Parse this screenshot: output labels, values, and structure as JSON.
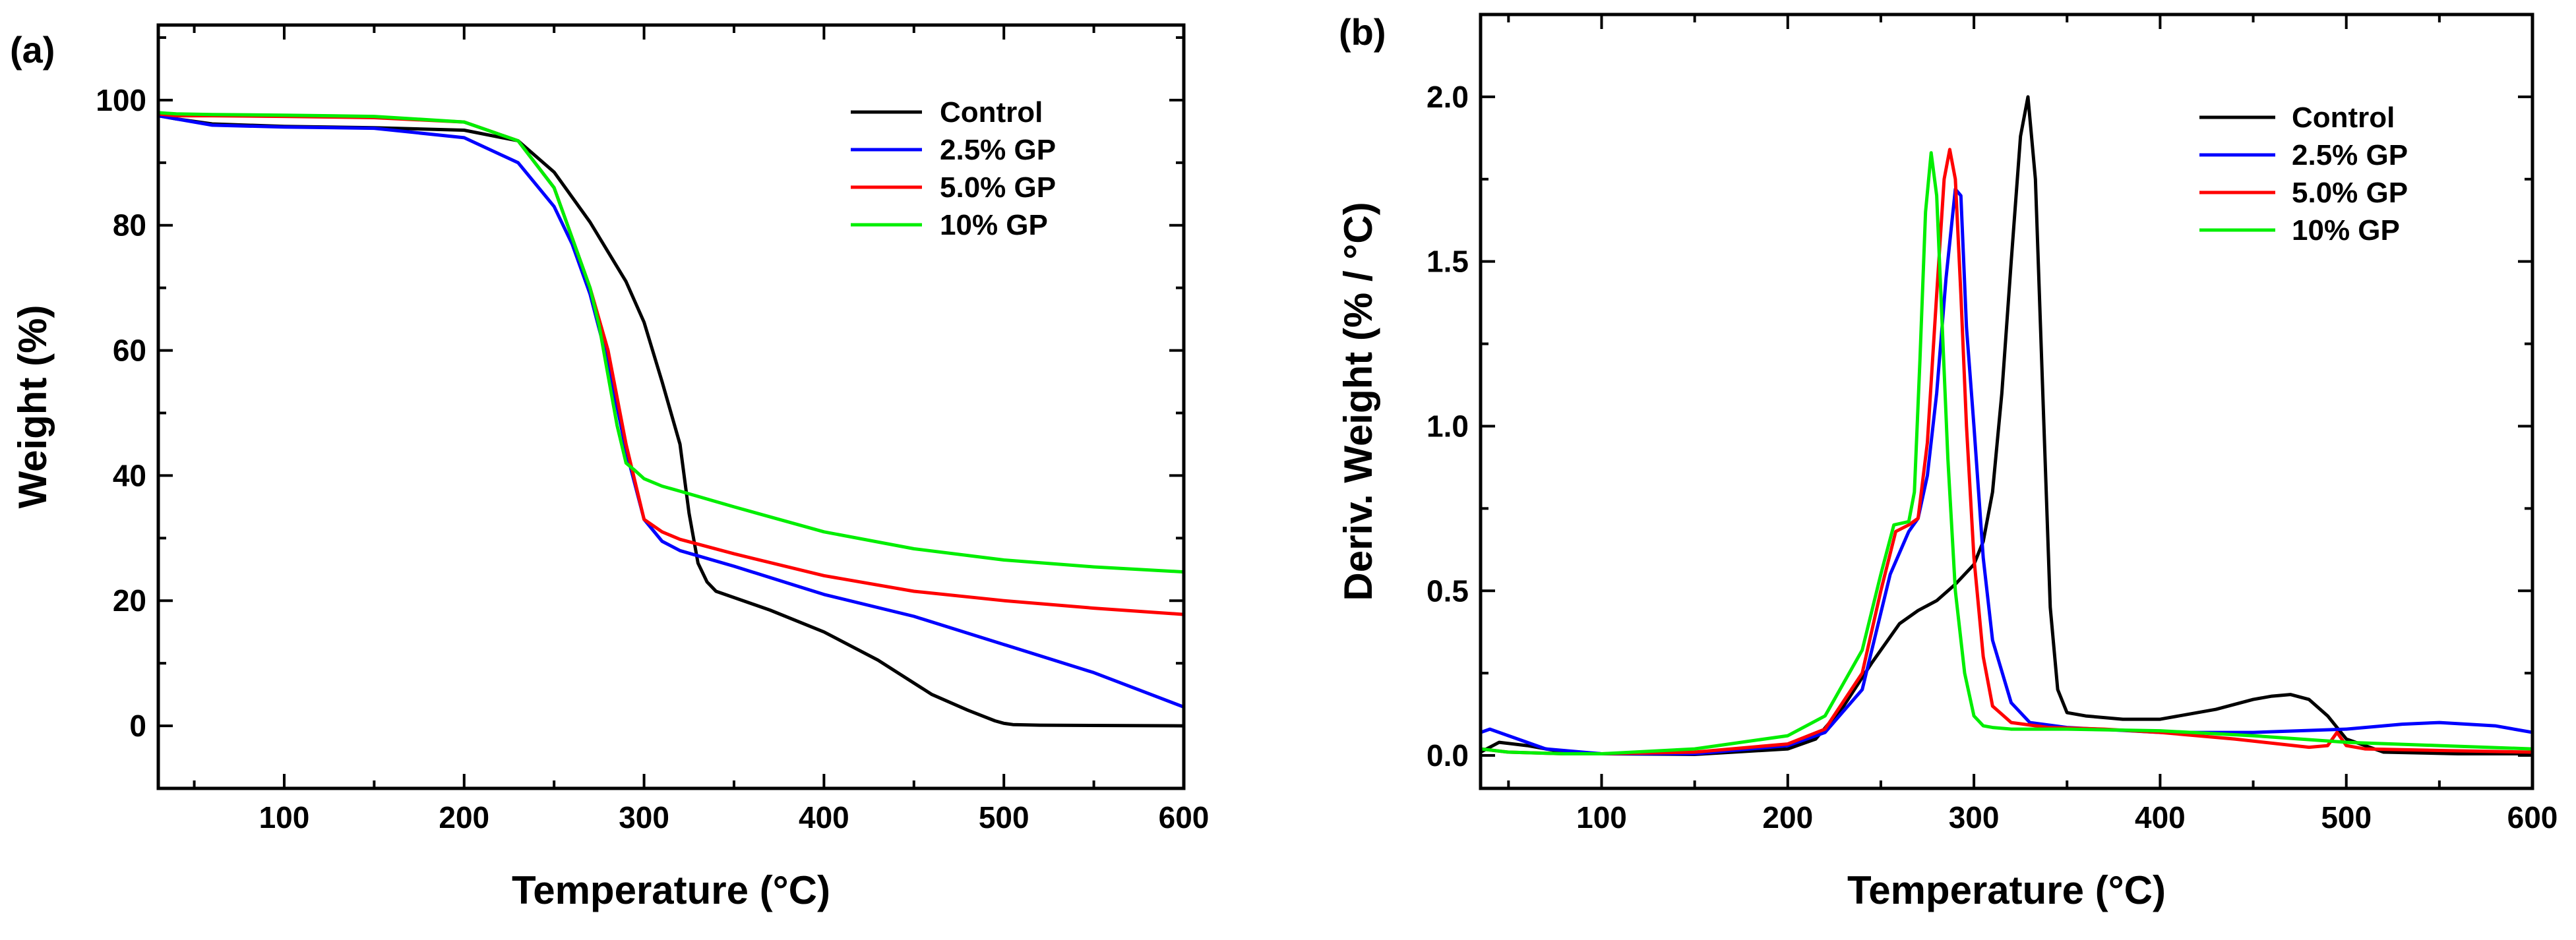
{
  "chart_data": [
    {
      "type": "line",
      "panel_label": "(a)",
      "title": "",
      "xlabel": "Temperature (°C)",
      "ylabel": "Weight (%)",
      "xlim": [
        30,
        600
      ],
      "ylim": [
        -10,
        112
      ],
      "xticks": [
        100,
        200,
        300,
        400,
        500,
        600
      ],
      "yticks": [
        0,
        20,
        40,
        60,
        80,
        100
      ],
      "grid": false,
      "legend_position": "top-right",
      "series": [
        {
          "name": "Control",
          "color": "#000000",
          "x": [
            30,
            40,
            60,
            100,
            150,
            200,
            230,
            250,
            270,
            290,
            300,
            310,
            320,
            325,
            330,
            335,
            340,
            350,
            370,
            400,
            430,
            460,
            480,
            495,
            500,
            505,
            520,
            600
          ],
          "y": [
            97.5,
            97,
            96.2,
            95.8,
            95.6,
            95.2,
            93.5,
            88.5,
            80.5,
            71,
            64.5,
            55,
            45,
            34,
            26,
            23,
            21.5,
            20.5,
            18.5,
            15,
            10.5,
            5,
            2.5,
            0.8,
            0.4,
            0.2,
            0.1,
            0
          ]
        },
        {
          "name": "2.5% GP",
          "color": "#0000ff",
          "x": [
            30,
            40,
            60,
            100,
            150,
            200,
            230,
            250,
            260,
            270,
            280,
            290,
            300,
            310,
            320,
            350,
            400,
            450,
            500,
            550,
            600
          ],
          "y": [
            97.5,
            97,
            96,
            95.7,
            95.5,
            94,
            90,
            83,
            77,
            69,
            58,
            44,
            33,
            29.5,
            28,
            25.5,
            21,
            17.5,
            13,
            8.5,
            3
          ]
        },
        {
          "name": "5.0% GP",
          "color": "#ff0000",
          "x": [
            30,
            40,
            60,
            100,
            150,
            200,
            230,
            250,
            260,
            270,
            280,
            290,
            300,
            310,
            320,
            350,
            400,
            450,
            500,
            550,
            600
          ],
          "y": [
            97.8,
            97.5,
            97.5,
            97.4,
            97.2,
            96.5,
            93.5,
            86,
            78,
            70,
            60,
            45,
            33,
            31,
            29.8,
            27.5,
            24,
            21.5,
            20,
            18.8,
            17.8
          ]
        },
        {
          "name": "10%  GP",
          "color": "#00ee00",
          "x": [
            30,
            40,
            60,
            100,
            150,
            200,
            230,
            250,
            260,
            270,
            275,
            280,
            285,
            290,
            295,
            300,
            310,
            320,
            350,
            400,
            450,
            500,
            550,
            600
          ],
          "y": [
            98,
            97.8,
            97.7,
            97.6,
            97.4,
            96.5,
            93.5,
            86,
            78,
            70,
            64,
            56,
            48,
            42,
            40.8,
            39.5,
            38.3,
            37.5,
            35,
            31,
            28.3,
            26.5,
            25.4,
            24.6
          ]
        }
      ]
    },
    {
      "type": "line",
      "panel_label": "(b)",
      "title": "",
      "xlabel": "Temperature (°C)",
      "ylabel": "Deriv. Weight (% / °C)",
      "xlim": [
        35,
        600
      ],
      "ylim": [
        -0.1,
        2.25
      ],
      "xticks": [
        100,
        200,
        300,
        400,
        500,
        600
      ],
      "yticks": [
        0.0,
        0.5,
        1.0,
        1.5,
        2.0
      ],
      "ytick_labels": [
        "0.0",
        "0.5",
        "1.0",
        "1.5",
        "2.0"
      ],
      "grid": false,
      "legend_position": "top-right",
      "series": [
        {
          "name": "Control",
          "color": "#000000",
          "x": [
            35,
            45,
            60,
            80,
            100,
            150,
            200,
            215,
            230,
            245,
            260,
            270,
            280,
            290,
            300,
            305,
            310,
            315,
            320,
            325,
            329,
            333,
            337,
            341,
            345,
            350,
            360,
            380,
            400,
            430,
            450,
            460,
            470,
            480,
            490,
            500,
            520,
            560,
            600
          ],
          "y": [
            0.01,
            0.04,
            0.03,
            0.01,
            0.005,
            0.003,
            0.02,
            0.05,
            0.15,
            0.28,
            0.4,
            0.44,
            0.47,
            0.52,
            0.58,
            0.65,
            0.8,
            1.1,
            1.5,
            1.88,
            2.0,
            1.75,
            1.1,
            0.45,
            0.2,
            0.13,
            0.12,
            0.11,
            0.11,
            0.14,
            0.17,
            0.18,
            0.185,
            0.17,
            0.12,
            0.05,
            0.01,
            0.005,
            0.005
          ]
        },
        {
          "name": "2.5% GP",
          "color": "#0000ff",
          "x": [
            35,
            40,
            50,
            70,
            100,
            150,
            200,
            220,
            240,
            255,
            265,
            270,
            275,
            280,
            285,
            290,
            293,
            296,
            300,
            305,
            310,
            320,
            330,
            350,
            400,
            450,
            500,
            530,
            550,
            580,
            600
          ],
          "y": [
            0.07,
            0.08,
            0.06,
            0.02,
            0.005,
            0.005,
            0.03,
            0.07,
            0.2,
            0.55,
            0.68,
            0.72,
            0.85,
            1.1,
            1.45,
            1.72,
            1.7,
            1.3,
            1.0,
            0.6,
            0.35,
            0.16,
            0.1,
            0.085,
            0.07,
            0.07,
            0.08,
            0.095,
            0.1,
            0.09,
            0.07
          ]
        },
        {
          "name": "5.0% GP",
          "color": "#ff0000",
          "x": [
            35,
            50,
            80,
            100,
            150,
            200,
            220,
            240,
            250,
            258,
            265,
            270,
            275,
            280,
            284,
            287,
            290,
            293,
            296,
            300,
            305,
            310,
            320,
            340,
            370,
            400,
            440,
            480,
            490,
            495,
            500,
            510,
            550,
            600
          ],
          "y": [
            0.02,
            0.01,
            0.005,
            0.005,
            0.01,
            0.035,
            0.08,
            0.25,
            0.5,
            0.68,
            0.7,
            0.72,
            0.95,
            1.4,
            1.75,
            1.84,
            1.75,
            1.4,
            1.0,
            0.6,
            0.3,
            0.15,
            0.1,
            0.085,
            0.08,
            0.07,
            0.05,
            0.025,
            0.03,
            0.07,
            0.03,
            0.02,
            0.015,
            0.01
          ]
        },
        {
          "name": "10%  GP",
          "color": "#00ee00",
          "x": [
            35,
            50,
            80,
            100,
            150,
            200,
            220,
            240,
            250,
            257,
            265,
            268,
            271,
            274,
            277,
            280,
            283,
            286,
            290,
            295,
            300,
            305,
            310,
            320,
            350,
            400,
            450,
            500,
            550,
            600
          ],
          "y": [
            0.02,
            0.01,
            0.005,
            0.005,
            0.02,
            0.06,
            0.12,
            0.32,
            0.55,
            0.7,
            0.71,
            0.8,
            1.2,
            1.65,
            1.83,
            1.7,
            1.3,
            0.9,
            0.5,
            0.25,
            0.12,
            0.09,
            0.085,
            0.08,
            0.08,
            0.075,
            0.06,
            0.04,
            0.03,
            0.02
          ]
        }
      ]
    }
  ]
}
